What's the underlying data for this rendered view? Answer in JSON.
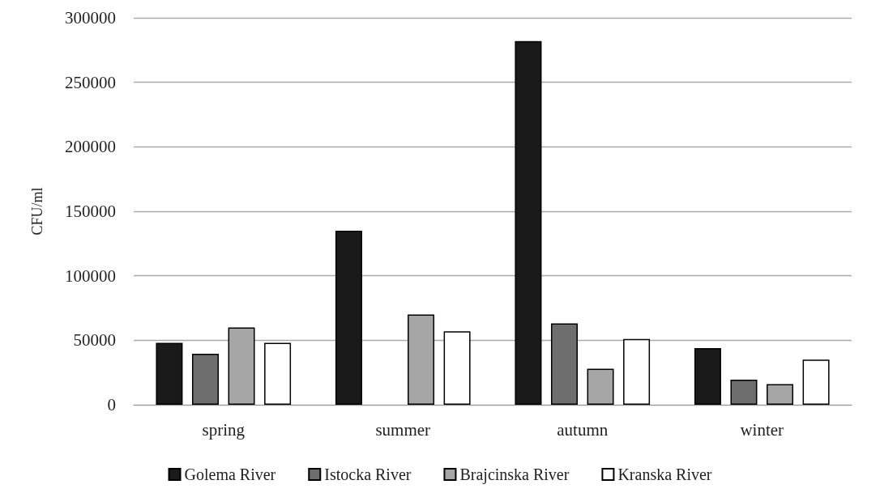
{
  "chart_data": {
    "type": "bar",
    "ylabel": "CFU/ml",
    "categories": [
      "spring",
      "summer",
      "autumn",
      "winter"
    ],
    "series": [
      {
        "name": "Golema River",
        "color": "#1a1a1a",
        "values": [
          48000,
          135000,
          282000,
          44000
        ]
      },
      {
        "name": "Istocka River",
        "color": "#6e6e6e",
        "values": [
          39500,
          null,
          63000,
          19500
        ]
      },
      {
        "name": "Brajcinska River",
        "color": "#a6a6a6",
        "values": [
          60000,
          70000,
          28000,
          16000
        ]
      },
      {
        "name": "Kranska River",
        "color": "#ffffff",
        "values": [
          48000,
          57000,
          51000,
          35000
        ]
      }
    ],
    "ylim": [
      0,
      300000
    ],
    "yticks": [
      0,
      50000,
      100000,
      150000,
      200000,
      250000,
      300000
    ],
    "grid": "y",
    "legend": "bottom"
  }
}
